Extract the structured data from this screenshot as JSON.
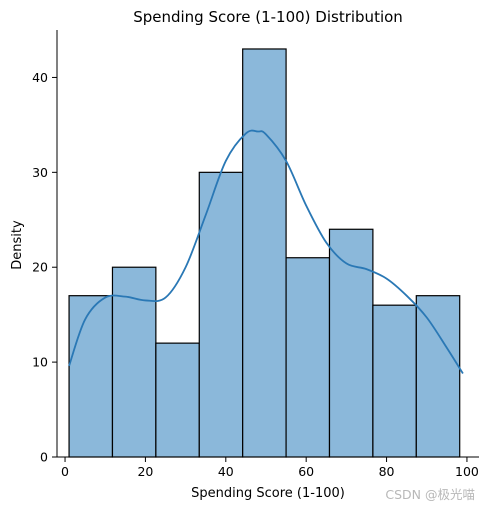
{
  "chart_data": {
    "type": "bar",
    "title": "Spending Score (1-100) Distribution",
    "xlabel": "Spending Score (1-100)",
    "ylabel": "Density",
    "xlim": [
      -2,
      103
    ],
    "ylim": [
      0,
      45
    ],
    "x_ticks": [
      0,
      20,
      40,
      60,
      80,
      100
    ],
    "y_ticks": [
      0,
      10,
      20,
      30,
      40
    ],
    "grid": false,
    "bins": [
      {
        "x0": 1,
        "x1": 11.8,
        "count": 17
      },
      {
        "x0": 11.8,
        "x1": 22.6,
        "count": 20
      },
      {
        "x0": 22.6,
        "x1": 33.4,
        "count": 12
      },
      {
        "x0": 33.4,
        "x1": 44.2,
        "count": 30
      },
      {
        "x0": 44.2,
        "x1": 55.0,
        "count": 43
      },
      {
        "x0": 55.0,
        "x1": 65.8,
        "count": 21
      },
      {
        "x0": 65.8,
        "x1": 76.6,
        "count": 24
      },
      {
        "x0": 76.6,
        "x1": 87.4,
        "count": 16
      },
      {
        "x0": 87.4,
        "x1": 98.2,
        "count": 17
      }
    ],
    "kde": {
      "x": [
        1,
        5,
        10,
        15,
        20,
        25,
        30,
        35,
        40,
        45,
        48,
        50,
        55,
        60,
        65,
        70,
        75,
        80,
        85,
        90,
        95,
        99
      ],
      "y": [
        9.6,
        14.5,
        16.8,
        16.9,
        16.5,
        16.8,
        20.0,
        25.5,
        31.2,
        34.1,
        34.3,
        34.0,
        31.2,
        26.5,
        22.6,
        20.4,
        19.8,
        18.8,
        17.0,
        14.7,
        11.5,
        8.8
      ]
    },
    "bar_color": "#8bb8da",
    "bar_edge_color": "#000000",
    "kde_color": "#2a78b5"
  },
  "watermark": "CSDN @极光喵"
}
